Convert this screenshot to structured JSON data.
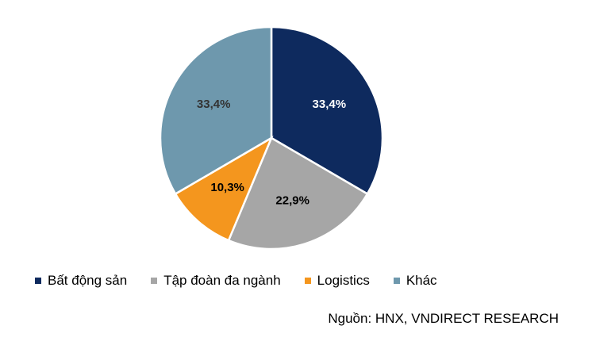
{
  "chart_data": {
    "type": "pie",
    "categories": [
      "Bất động sản",
      "Tập đoàn đa ngành",
      "Logistics",
      "Khác"
    ],
    "values": [
      33.4,
      22.9,
      10.3,
      33.4
    ],
    "labels": [
      "33,4%",
      "22,9%",
      "10,3%",
      "33,4%"
    ],
    "colors": [
      "#0e2a5e",
      "#a6a6a6",
      "#f4961e",
      "#6e98ad"
    ],
    "label_colors": [
      "#ffffff",
      "#000000",
      "#000000",
      "#333333"
    ],
    "start_angle_deg": 0,
    "direction": "clockwise",
    "legend_position": "bottom"
  },
  "source": "Nguồn: HNX, VNDIRECT RESEARCH"
}
